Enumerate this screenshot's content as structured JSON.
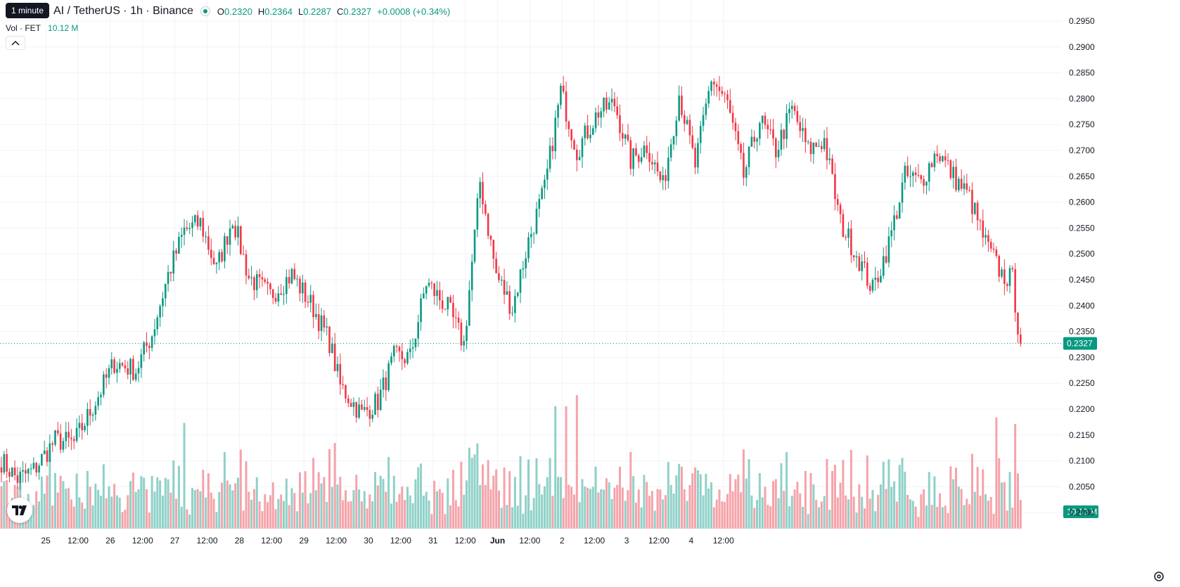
{
  "header": {
    "timeframe_tooltip": "1 minute",
    "symbol_title": "AI / TetherUS · 1h · Binance",
    "ohlc": [
      {
        "key": "O",
        "value": "0.2320"
      },
      {
        "key": "H",
        "value": "0.2364"
      },
      {
        "key": "L",
        "value": "0.2287"
      },
      {
        "key": "C",
        "value": "0.2327"
      }
    ],
    "change": "+0.0008 (+0.34%)",
    "volume_label": "Vol · FET",
    "volume_value": "10.12 M"
  },
  "colors": {
    "up": "#089981",
    "down": "#f23645",
    "volume_up": "#8fd1c8",
    "volume_down": "#f5a3a9",
    "grid": "#f0f3fa",
    "axis_text": "#131722"
  },
  "icons": [
    "chevron-up-icon",
    "tradingview-logo-icon",
    "settings-gear-icon"
  ],
  "chart_data": {
    "type": "candlestick",
    "interval": "1h",
    "price_axis": {
      "ticks": [
        "0.2950",
        "0.2900",
        "0.2850",
        "0.2800",
        "0.2750",
        "0.2700",
        "0.2650",
        "0.2600",
        "0.2550",
        "0.2500",
        "0.2450",
        "0.2400",
        "0.2350",
        "0.2300",
        "0.2250",
        "0.2200",
        "0.2150",
        "0.2100",
        "0.2050",
        "0.2000"
      ],
      "range": [
        0.1975,
        0.2965
      ]
    },
    "time_axis": {
      "ticks": [
        "25",
        "12:00",
        "26",
        "12:00",
        "27",
        "12:00",
        "28",
        "12:00",
        "29",
        "12:00",
        "30",
        "12:00",
        "31",
        "12:00",
        "Jun",
        "12:00",
        "2",
        "12:00",
        "3",
        "12:00",
        "4",
        "12:00"
      ],
      "bold_ticks": [
        "Jun"
      ]
    },
    "last_price": "0.2327",
    "last_volume": "10.12 M",
    "volume_series_max_m": 24,
    "key_points": [
      {
        "t": 0,
        "c": 0.21
      },
      {
        "t": 6,
        "c": 0.2065
      },
      {
        "t": 12,
        "c": 0.2082
      },
      {
        "t": 20,
        "c": 0.214
      },
      {
        "t": 27,
        "c": 0.2135
      },
      {
        "t": 34,
        "c": 0.2205
      },
      {
        "t": 42,
        "c": 0.229
      },
      {
        "t": 50,
        "c": 0.2275
      },
      {
        "t": 56,
        "c": 0.2345
      },
      {
        "t": 62,
        "c": 0.246
      },
      {
        "t": 68,
        "c": 0.2545
      },
      {
        "t": 74,
        "c": 0.256
      },
      {
        "t": 80,
        "c": 0.247
      },
      {
        "t": 86,
        "c": 0.257
      },
      {
        "t": 92,
        "c": 0.2455
      },
      {
        "t": 100,
        "c": 0.242
      },
      {
        "t": 108,
        "c": 0.246
      },
      {
        "t": 116,
        "c": 0.2395
      },
      {
        "t": 122,
        "c": 0.233
      },
      {
        "t": 126,
        "c": 0.2245
      },
      {
        "t": 134,
        "c": 0.219
      },
      {
        "t": 140,
        "c": 0.2215
      },
      {
        "t": 146,
        "c": 0.23
      },
      {
        "t": 152,
        "c": 0.23
      },
      {
        "t": 158,
        "c": 0.2445
      },
      {
        "t": 166,
        "c": 0.2395
      },
      {
        "t": 172,
        "c": 0.2325
      },
      {
        "t": 178,
        "c": 0.264
      },
      {
        "t": 184,
        "c": 0.246
      },
      {
        "t": 190,
        "c": 0.2395
      },
      {
        "t": 196,
        "c": 0.2525
      },
      {
        "t": 202,
        "c": 0.2625
      },
      {
        "t": 208,
        "c": 0.2815
      },
      {
        "t": 214,
        "c": 0.27
      },
      {
        "t": 222,
        "c": 0.2775
      },
      {
        "t": 228,
        "c": 0.279
      },
      {
        "t": 234,
        "c": 0.268
      },
      {
        "t": 240,
        "c": 0.271
      },
      {
        "t": 246,
        "c": 0.263
      },
      {
        "t": 252,
        "c": 0.281
      },
      {
        "t": 258,
        "c": 0.267
      },
      {
        "t": 264,
        "c": 0.284
      },
      {
        "t": 270,
        "c": 0.279
      },
      {
        "t": 276,
        "c": 0.265
      },
      {
        "t": 282,
        "c": 0.276
      },
      {
        "t": 288,
        "c": 0.27
      },
      {
        "t": 294,
        "c": 0.278
      },
      {
        "t": 300,
        "c": 0.27
      },
      {
        "t": 306,
        "c": 0.272
      },
      {
        "t": 312,
        "c": 0.256
      },
      {
        "t": 318,
        "c": 0.25
      },
      {
        "t": 324,
        "c": 0.243
      },
      {
        "t": 330,
        "c": 0.252
      },
      {
        "t": 336,
        "c": 0.265
      },
      {
        "t": 342,
        "c": 0.264
      },
      {
        "t": 348,
        "c": 0.27
      },
      {
        "t": 354,
        "c": 0.265
      },
      {
        "t": 360,
        "c": 0.261
      },
      {
        "t": 366,
        "c": 0.252
      },
      {
        "t": 372,
        "c": 0.246
      },
      {
        "t": 376,
        "c": 0.245
      },
      {
        "t": 379,
        "c": 0.232
      }
    ]
  }
}
